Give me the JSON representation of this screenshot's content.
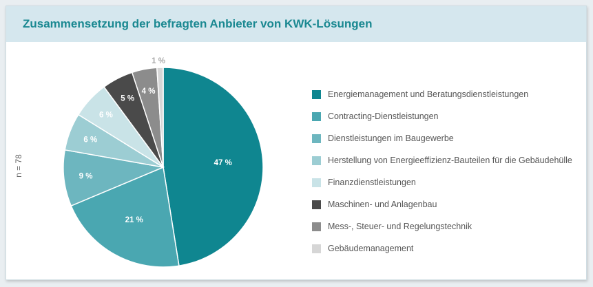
{
  "header": {
    "title": "Zusammensetzung der befragten Anbieter von KWK-Lösungen"
  },
  "n_label": "n = 78",
  "chart_data": {
    "type": "pie",
    "title": "Zusammensetzung der befragten Anbieter von KWK-Lösungen",
    "n": "n = 78",
    "legend_position": "right",
    "slices": [
      {
        "name": "Energiemanagement und Beratungsdienstleistungen",
        "value": 47,
        "label": "47 %",
        "color": "#0f8690",
        "label_color": "#ffffff"
      },
      {
        "name": "Contracting-Dienstleistungen",
        "value": 21,
        "label": "21 %",
        "color": "#4aa7b1",
        "label_color": "#ffffff"
      },
      {
        "name": "Dienstleistungen im Baugewerbe",
        "value": 9,
        "label": "9 %",
        "color": "#6db6bf",
        "label_color": "#ffffff"
      },
      {
        "name": "Herstellung von Energieeffizienz-Bauteilen für die Gebäudehülle",
        "value": 6,
        "label": "6 %",
        "color": "#9ccdd3",
        "label_color": "#ffffff"
      },
      {
        "name": "Finanzdienstleistungen",
        "value": 6,
        "label": "6 %",
        "color": "#c9e3e7",
        "label_color": "#ffffff"
      },
      {
        "name": "Maschinen- und Anlagenbau",
        "value": 5,
        "label": "5 %",
        "color": "#4a4a4a",
        "label_color": "#ffffff"
      },
      {
        "name": "Mess-, Steuer- und Regelungstechnik",
        "value": 4,
        "label": "4 %",
        "color": "#8c8c8c",
        "label_color": "#ffffff"
      },
      {
        "name": "Gebäudemanagement",
        "value": 1,
        "label": "1 %",
        "color": "#d6d6d6",
        "label_color": "#aaaaaa"
      }
    ]
  }
}
